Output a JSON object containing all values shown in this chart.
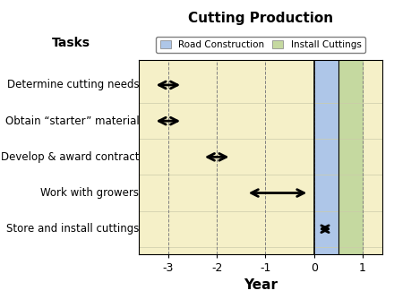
{
  "title": "Cutting Production",
  "xlabel": "Year",
  "tasks": [
    "Determine cutting needs",
    "Obtain “starter” material",
    "Develop & award contract",
    "Work with growers",
    "Store and install cuttings"
  ],
  "arrows": [
    [
      -3.3,
      -2.7
    ],
    [
      -3.3,
      -2.7
    ],
    [
      -2.3,
      -1.7
    ],
    [
      -1.4,
      -0.1
    ],
    [
      0.05,
      0.4
    ]
  ],
  "xlim": [
    -3.6,
    1.4
  ],
  "xticks": [
    -3,
    -2,
    -1,
    0,
    1
  ],
  "xticklabels": [
    "-3",
    "-2",
    "-1",
    "0",
    "1"
  ],
  "bg_color": "#f5f0c8",
  "road_construction": [
    0,
    0.5
  ],
  "road_construction_color": "#aec6e8",
  "install_cuttings": [
    0.5,
    1.0
  ],
  "install_cuttings_color": "#c5d9a0",
  "legend_labels": [
    "Road Construction",
    "Install Cuttings"
  ],
  "title_fontsize": 11,
  "axis_label_fontsize": 10,
  "tick_fontsize": 9,
  "task_label_fontsize": 8.5,
  "tasks_header_fontsize": 10
}
